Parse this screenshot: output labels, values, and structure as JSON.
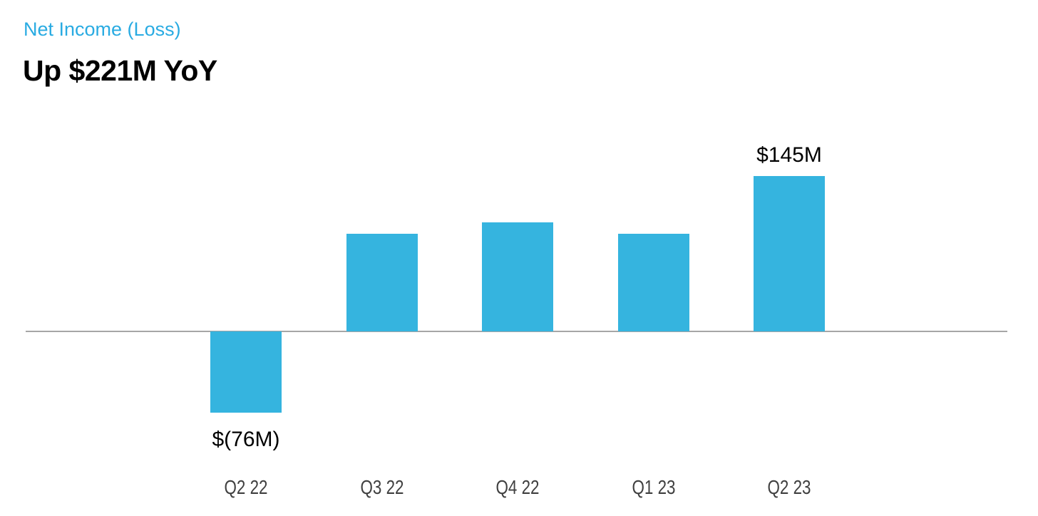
{
  "header": {
    "title": "Net Income (Loss)",
    "subtitle": "Up $221M YoY"
  },
  "colors": {
    "title_blue": "#29ABE2",
    "bar_fill": "#35B4DF",
    "axis_line": "#A6A6A6",
    "axis_label": "#404040",
    "data_label": "#000000",
    "background": "#FFFFFF"
  },
  "chart_data": {
    "type": "bar",
    "title": "Net Income (Loss)",
    "subtitle": "Up $221M YoY",
    "unit": "USD millions",
    "categories": [
      "Q2 22",
      "Q3 22",
      "Q4 22",
      "Q1 23",
      "Q2 23"
    ],
    "values": [
      -76,
      91,
      102,
      91,
      145
    ],
    "data_labels": [
      "$(76M)",
      "",
      "",
      "",
      "$145M"
    ],
    "xlabel": "",
    "ylabel": "",
    "ylim": [
      -120,
      170
    ],
    "legend": "none",
    "gridlines": false,
    "y_axis_ticks_shown": false,
    "zero_baseline_shown": true
  }
}
